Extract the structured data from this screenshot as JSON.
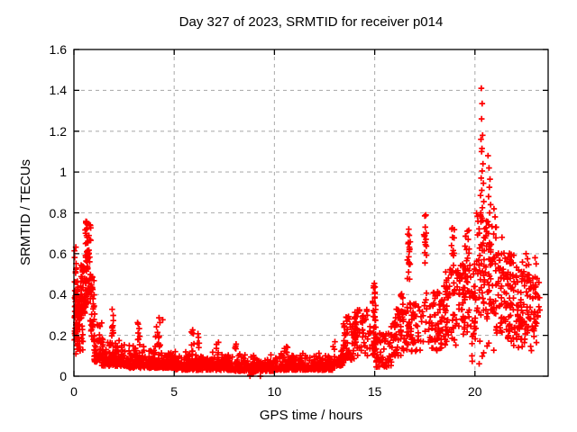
{
  "chart_data": {
    "type": "scatter",
    "title": "Day 327 of 2023, SRMTID for receiver p014",
    "xlabel": "GPS time / hours",
    "ylabel": "SRMTID / TECUs",
    "xlim": [
      0,
      23.65
    ],
    "ylim": [
      0,
      1.6
    ],
    "xtick_values": [
      0,
      5,
      10,
      15,
      20
    ],
    "xtick_labels": [
      "0",
      "5",
      "10",
      "15",
      "20"
    ],
    "ytick_values": [
      0,
      0.2,
      0.4,
      0.6,
      0.8,
      1.0,
      1.2,
      1.4,
      1.6
    ],
    "ytick_labels": [
      "0",
      "0.2",
      "0.4",
      "0.6",
      "0.8",
      "1",
      "1.2",
      "1.4",
      "1.6"
    ],
    "grid": true,
    "legend": "none",
    "marker": {
      "shape": "plus",
      "color": "#ff0000",
      "size": 7
    },
    "colors": {
      "grid": "#b0b0b0",
      "border": "#000000",
      "text": "#000000",
      "background": "#ffffff"
    },
    "series": [
      {
        "name": "SRMTID",
        "seed": 1327,
        "density_bands": [
          [
            0.02,
            0.18,
            0.1,
            0.5,
            40,
            1
          ],
          [
            0.02,
            0.15,
            0.5,
            0.66,
            8,
            1
          ],
          [
            0.1,
            0.45,
            0.12,
            0.45,
            55,
            1
          ],
          [
            0.35,
            0.6,
            0.28,
            0.55,
            45,
            1
          ],
          [
            0.55,
            0.85,
            0.35,
            0.76,
            60,
            1
          ],
          [
            0.8,
            1.05,
            0.17,
            0.5,
            40,
            1
          ],
          [
            1.0,
            1.4,
            0.07,
            0.3,
            45,
            0
          ],
          [
            1.35,
            2.1,
            0.05,
            0.22,
            85,
            0
          ],
          [
            1.88,
            2.02,
            0.2,
            0.33,
            9,
            1
          ],
          [
            2.05,
            2.6,
            0.05,
            0.2,
            65,
            0
          ],
          [
            2.6,
            4.05,
            0.04,
            0.16,
            150,
            0
          ],
          [
            3.15,
            3.32,
            0.14,
            0.27,
            8,
            1
          ],
          [
            4.05,
            4.45,
            0.14,
            0.29,
            13,
            1
          ],
          [
            4.0,
            5.0,
            0.04,
            0.14,
            100,
            0
          ],
          [
            5.0,
            6.0,
            0.03,
            0.13,
            100,
            0
          ],
          [
            5.85,
            6.02,
            0.12,
            0.25,
            7,
            1
          ],
          [
            6.0,
            8.0,
            0.03,
            0.12,
            190,
            0
          ],
          [
            6.15,
            6.28,
            0.12,
            0.21,
            5,
            1
          ],
          [
            7.1,
            7.22,
            0.11,
            0.18,
            4,
            1
          ],
          [
            8.0,
            8.12,
            0.11,
            0.17,
            4,
            1
          ],
          [
            8.0,
            10.0,
            0.025,
            0.11,
            190,
            0
          ],
          [
            8.7,
            8.95,
            0.0,
            0.02,
            3,
            1
          ],
          [
            10.0,
            12.9,
            0.03,
            0.12,
            270,
            0
          ],
          [
            10.5,
            10.72,
            0.11,
            0.16,
            6,
            1
          ],
          [
            12.9,
            13.5,
            0.05,
            0.19,
            55,
            0
          ],
          [
            13.4,
            14.1,
            0.08,
            0.3,
            65,
            1
          ],
          [
            14.0,
            14.8,
            0.1,
            0.33,
            55,
            1
          ],
          [
            14.88,
            15.08,
            0.1,
            0.4,
            30,
            1
          ],
          [
            14.9,
            15.05,
            0.4,
            0.46,
            6,
            1
          ],
          [
            14.85,
            15.85,
            0.05,
            0.22,
            55,
            1
          ],
          [
            15.0,
            15.6,
            0.04,
            0.1,
            15,
            1
          ],
          [
            15.8,
            16.6,
            0.1,
            0.33,
            60,
            1
          ],
          [
            16.25,
            16.42,
            0.27,
            0.45,
            9,
            1
          ],
          [
            16.63,
            16.8,
            0.45,
            0.73,
            11,
            1
          ],
          [
            16.6,
            17.4,
            0.12,
            0.36,
            55,
            1
          ],
          [
            17.44,
            17.6,
            0.5,
            0.79,
            9,
            1
          ],
          [
            17.4,
            18.4,
            0.12,
            0.42,
            65,
            1
          ],
          [
            18.3,
            19.2,
            0.15,
            0.52,
            75,
            1
          ],
          [
            18.75,
            18.98,
            0.52,
            0.73,
            9,
            1
          ],
          [
            19.2,
            20.05,
            0.18,
            0.56,
            85,
            1
          ],
          [
            19.5,
            19.8,
            0.56,
            0.72,
            8,
            1
          ],
          [
            20.08,
            20.5,
            0.3,
            0.8,
            48,
            1
          ],
          [
            20.5,
            21.1,
            0.25,
            0.76,
            60,
            1
          ],
          [
            21.05,
            22.0,
            0.2,
            0.62,
            100,
            1
          ],
          [
            22.0,
            22.7,
            0.2,
            0.56,
            70,
            1
          ],
          [
            22.7,
            23.25,
            0.22,
            0.5,
            42,
            1
          ],
          [
            19.85,
            21.25,
            0.05,
            0.18,
            10,
            1
          ],
          [
            21.3,
            23.1,
            0.12,
            0.2,
            18,
            1
          ]
        ],
        "outlier_points": [
          [
            0.6,
            0.75
          ],
          [
            0.63,
            0.72
          ],
          [
            0.58,
            0.7
          ],
          [
            0.66,
            0.68
          ],
          [
            0.7,
            0.66
          ],
          [
            16.7,
            0.72
          ],
          [
            16.72,
            0.69
          ],
          [
            16.68,
            0.655
          ],
          [
            16.73,
            0.62
          ],
          [
            16.7,
            0.585
          ],
          [
            16.71,
            0.55
          ],
          [
            16.69,
            0.51
          ],
          [
            16.74,
            0.475
          ],
          [
            17.5,
            0.785
          ],
          [
            17.52,
            0.73
          ],
          [
            17.48,
            0.685
          ],
          [
            17.53,
            0.645
          ],
          [
            17.5,
            0.605
          ],
          [
            17.51,
            0.555
          ],
          [
            18.85,
            0.72
          ],
          [
            18.88,
            0.68
          ],
          [
            18.83,
            0.64
          ],
          [
            18.87,
            0.6
          ],
          [
            19.62,
            0.71
          ],
          [
            19.66,
            0.67
          ],
          [
            19.58,
            0.62
          ],
          [
            20.32,
            1.41
          ],
          [
            20.36,
            1.335
          ],
          [
            20.33,
            1.26
          ],
          [
            20.38,
            1.18
          ],
          [
            20.3,
            1.16
          ],
          [
            20.35,
            1.115
          ],
          [
            20.33,
            1.1
          ],
          [
            20.4,
            1.04
          ],
          [
            20.36,
            1.005
          ],
          [
            20.31,
            0.97
          ],
          [
            20.42,
            0.945
          ],
          [
            20.34,
            0.91
          ],
          [
            20.28,
            0.885
          ],
          [
            20.44,
            0.855
          ],
          [
            20.37,
            0.825
          ],
          [
            20.29,
            0.8
          ],
          [
            20.65,
            1.08
          ],
          [
            20.7,
            1.02
          ],
          [
            20.75,
            0.965
          ],
          [
            20.72,
            0.925
          ],
          [
            20.68,
            0.88
          ],
          [
            20.78,
            0.84
          ],
          [
            20.73,
            0.8
          ],
          [
            20.95,
            0.82
          ],
          [
            21.0,
            0.78
          ],
          [
            21.06,
            0.73
          ],
          [
            21.35,
            0.68
          ],
          [
            22.55,
            0.6
          ],
          [
            22.62,
            0.575
          ],
          [
            23.0,
            0.58
          ],
          [
            23.05,
            0.55
          ],
          [
            8.78,
            0.005
          ],
          [
            8.88,
            0.01
          ],
          [
            9.3,
            0.0
          ]
        ]
      }
    ]
  }
}
